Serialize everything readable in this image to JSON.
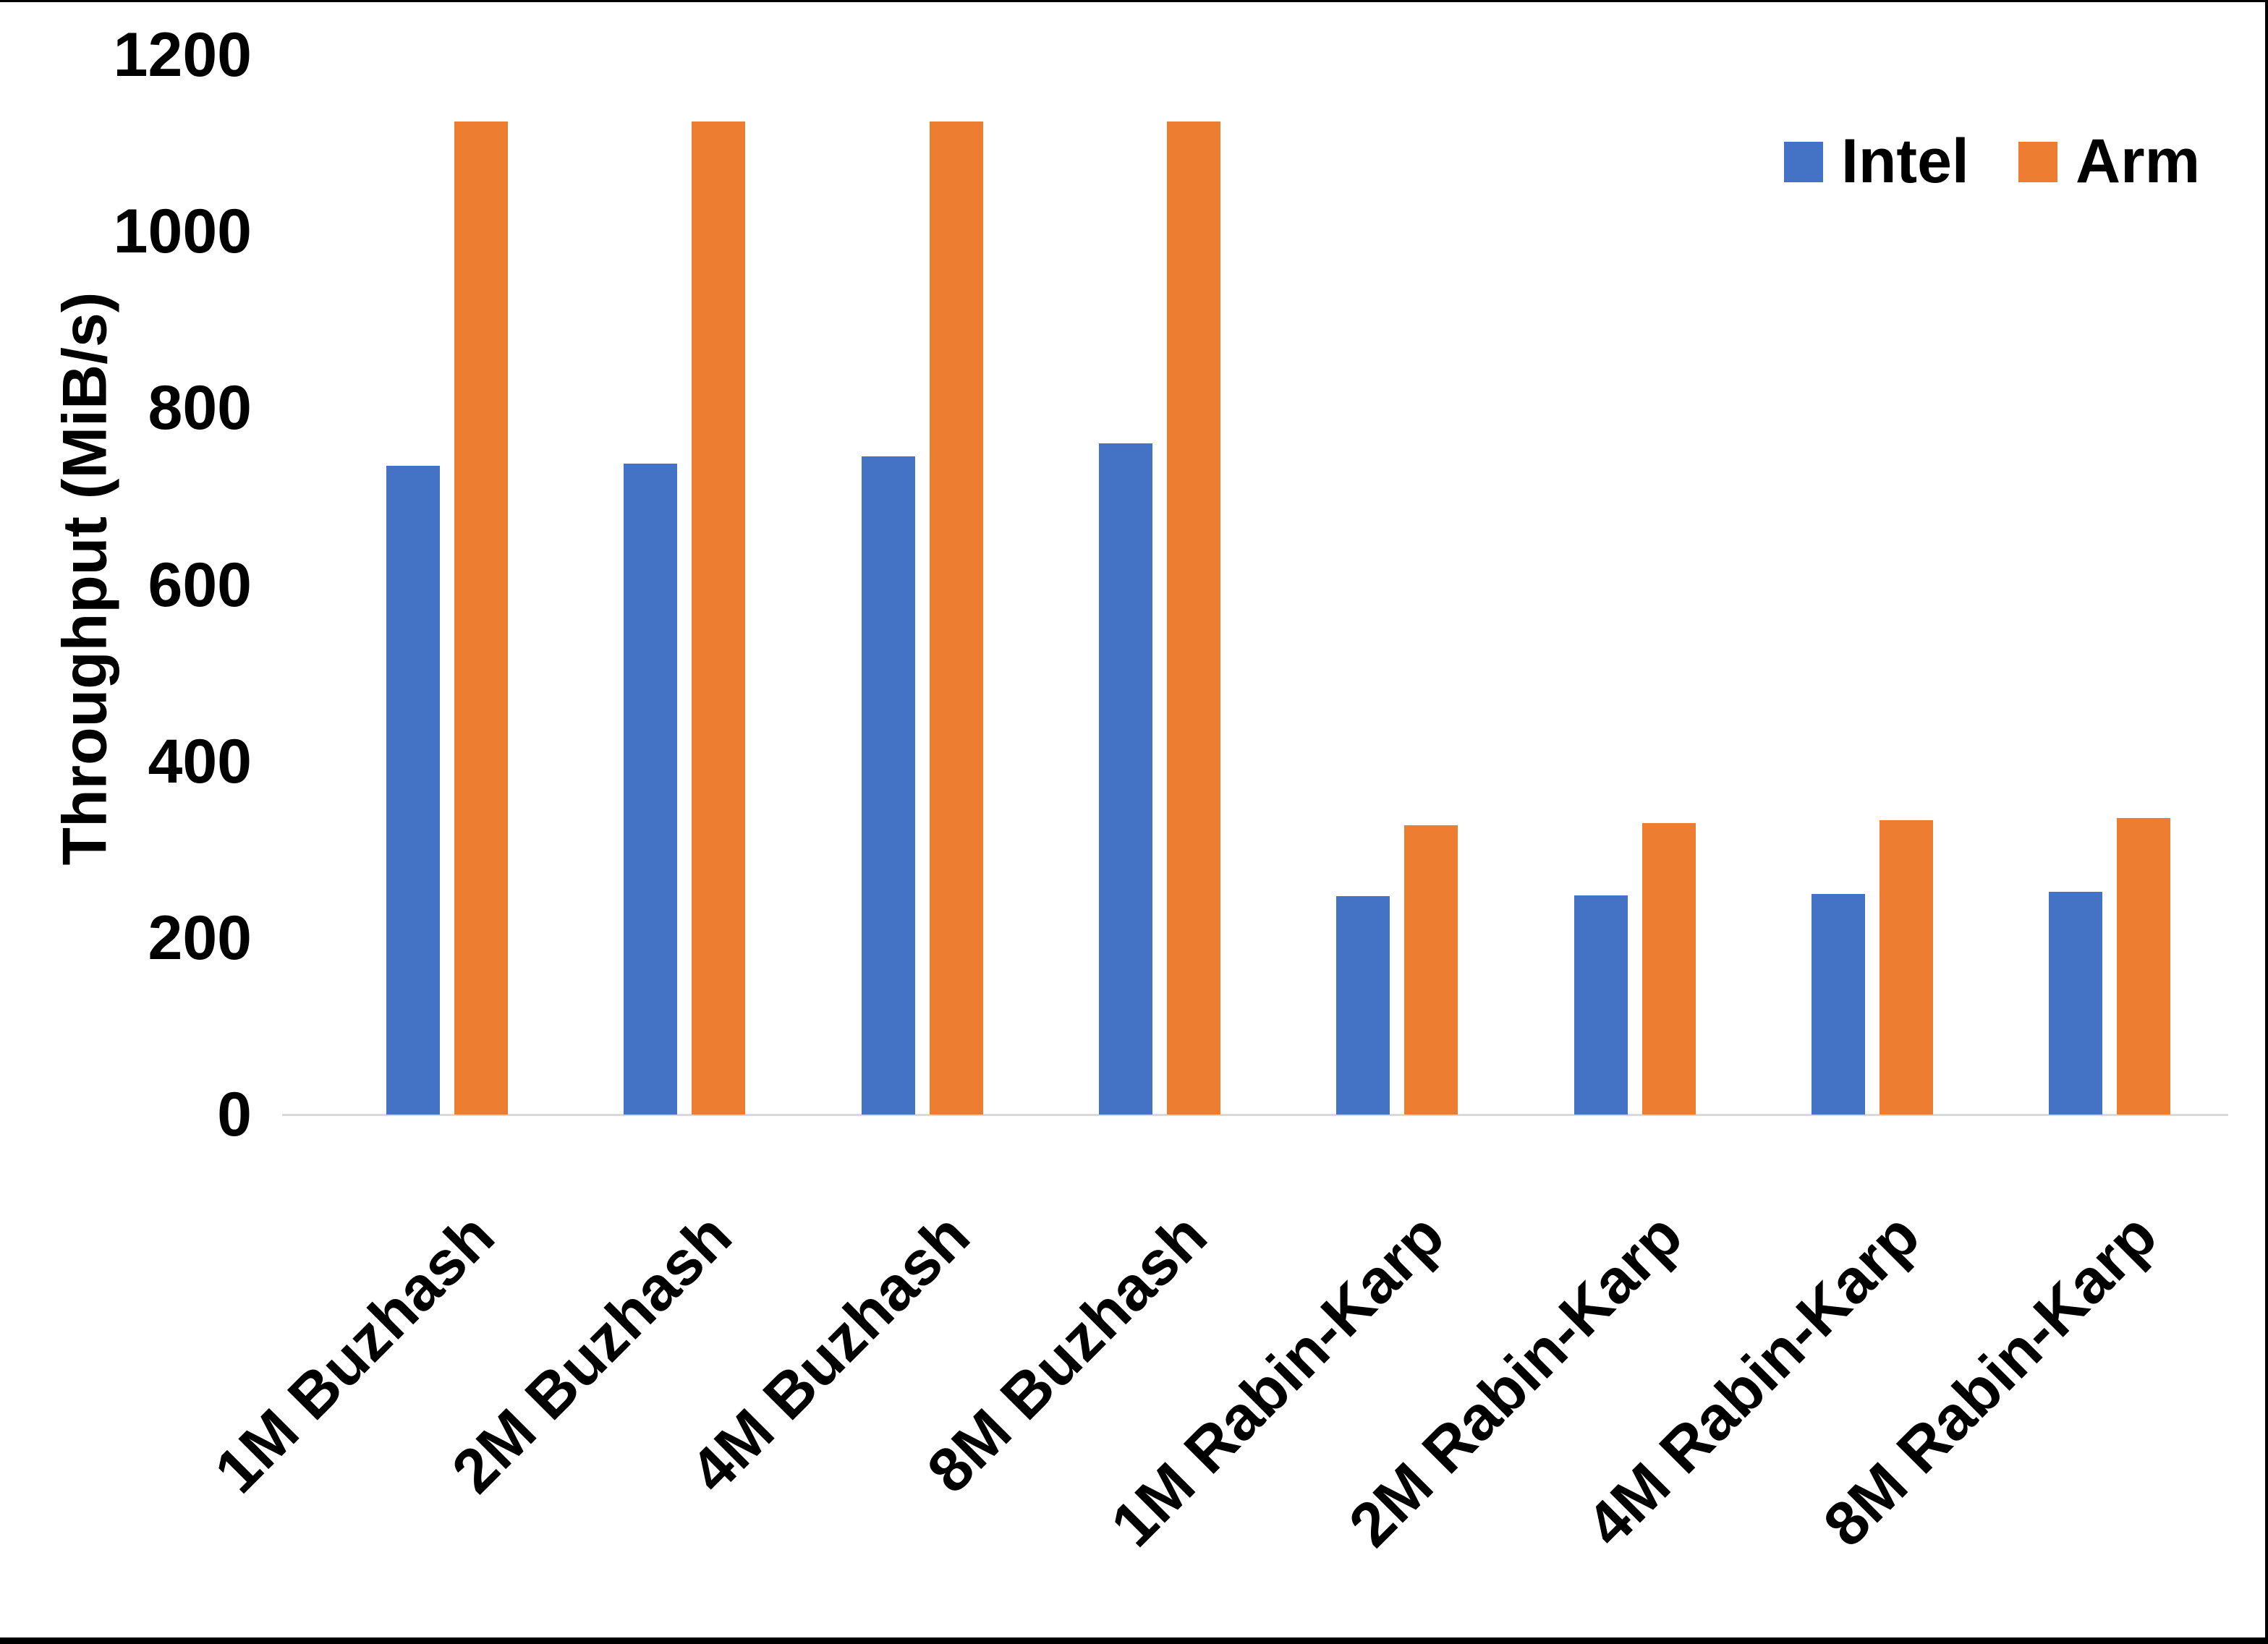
{
  "chart_data": {
    "type": "bar",
    "title": "",
    "categories": [
      "1M Buzhash",
      "2M Buzhash",
      "4M Buzhash",
      "8M Buzhash",
      "1M Rabin-Karp",
      "2M Rabin-Karp",
      "4M Rabin-Karp",
      "8M Rabin-Karp"
    ],
    "series": [
      {
        "name": "Intel",
        "color": "#4472C4",
        "values": [
          735,
          737,
          745,
          760,
          247,
          248,
          250,
          252
        ]
      },
      {
        "name": "Arm",
        "color": "#ED7D31",
        "values": [
          1125,
          1125,
          1125,
          1125,
          328,
          330,
          333,
          336
        ]
      }
    ],
    "xlabel": "",
    "ylabel": "Throughput (MiB/s)",
    "ylim": [
      0,
      1200
    ],
    "yticks": [
      0,
      200,
      400,
      600,
      800,
      1000,
      1200
    ],
    "grid": false,
    "legend_position": "top-right",
    "axis_line_color": "#D9D9D9",
    "bar_outline_color": "#F2F2F2",
    "text_color": "#000000"
  }
}
